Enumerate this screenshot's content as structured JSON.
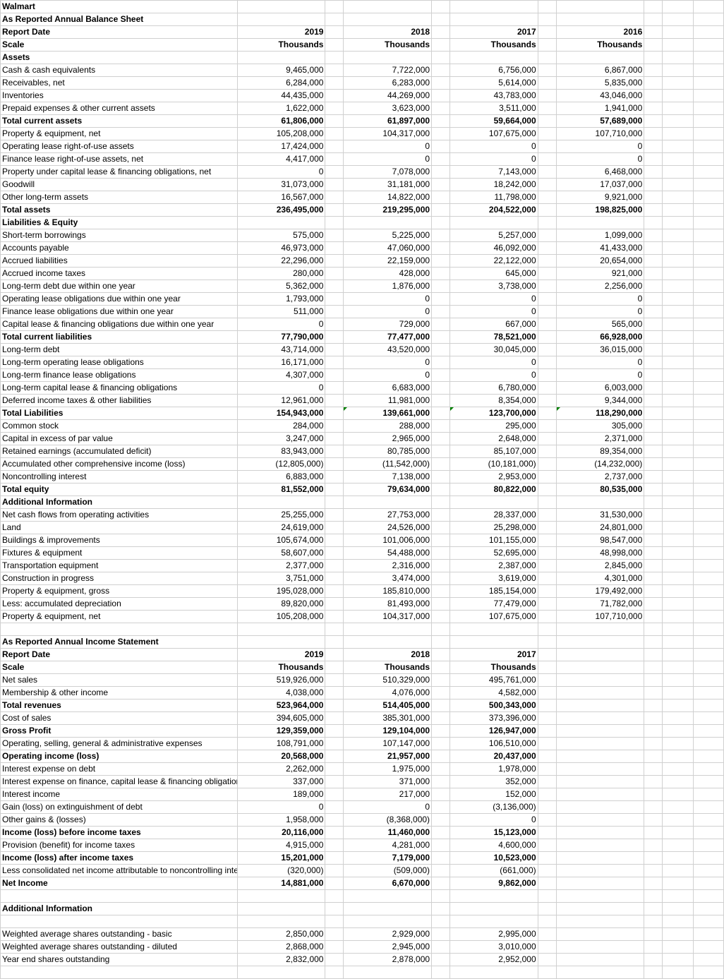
{
  "company": "Walmart",
  "sections": [
    {
      "type": "title",
      "label": "Walmart"
    },
    {
      "type": "bold",
      "label": "As Reported Annual Balance Sheet"
    },
    {
      "type": "bold",
      "label": "Report Date",
      "vals": [
        "2019",
        "2018",
        "2017",
        "2016"
      ]
    },
    {
      "type": "bold",
      "label": "Scale",
      "vals": [
        "Thousands",
        "Thousands",
        "Thousands",
        "Thousands"
      ]
    },
    {
      "type": "bold",
      "label": "Assets"
    },
    {
      "label": "Cash & cash equivalents",
      "vals": [
        "9,465,000",
        "7,722,000",
        "6,756,000",
        "6,867,000"
      ]
    },
    {
      "label": "Receivables, net",
      "vals": [
        "6,284,000",
        "6,283,000",
        "5,614,000",
        "5,835,000"
      ]
    },
    {
      "label": "Inventories",
      "vals": [
        "44,435,000",
        "44,269,000",
        "43,783,000",
        "43,046,000"
      ]
    },
    {
      "label": "Prepaid expenses & other current assets",
      "vals": [
        "1,622,000",
        "3,623,000",
        "3,511,000",
        "1,941,000"
      ]
    },
    {
      "type": "bold",
      "label": "Total current assets",
      "vals": [
        "61,806,000",
        "61,897,000",
        "59,664,000",
        "57,689,000"
      ]
    },
    {
      "label": "Property & equipment, net",
      "vals": [
        "105,208,000",
        "104,317,000",
        "107,675,000",
        "107,710,000"
      ]
    },
    {
      "label": "Operating lease right-of-use assets",
      "vals": [
        "17,424,000",
        "0",
        "0",
        "0"
      ]
    },
    {
      "label": "Finance lease right-of-use assets, net",
      "vals": [
        "4,417,000",
        "0",
        "0",
        "0"
      ]
    },
    {
      "label": "Property under capital lease & financing obligations, net",
      "vals": [
        "0",
        "7,078,000",
        "7,143,000",
        "6,468,000"
      ]
    },
    {
      "label": "Goodwill",
      "vals": [
        "31,073,000",
        "31,181,000",
        "18,242,000",
        "17,037,000"
      ]
    },
    {
      "label": "Other long-term assets",
      "vals": [
        "16,567,000",
        "14,822,000",
        "11,798,000",
        "9,921,000"
      ]
    },
    {
      "type": "bold",
      "label": "Total assets",
      "vals": [
        "236,495,000",
        "219,295,000",
        "204,522,000",
        "198,825,000"
      ]
    },
    {
      "type": "bold",
      "label": "Liabilities & Equity"
    },
    {
      "label": "Short-term borrowings",
      "vals": [
        "575,000",
        "5,225,000",
        "5,257,000",
        "1,099,000"
      ]
    },
    {
      "label": "Accounts payable",
      "vals": [
        "46,973,000",
        "47,060,000",
        "46,092,000",
        "41,433,000"
      ]
    },
    {
      "label": "Accrued liabilities",
      "vals": [
        "22,296,000",
        "22,159,000",
        "22,122,000",
        "20,654,000"
      ]
    },
    {
      "label": "Accrued income taxes",
      "vals": [
        "280,000",
        "428,000",
        "645,000",
        "921,000"
      ]
    },
    {
      "label": "Long-term debt due within one year",
      "vals": [
        "5,362,000",
        "1,876,000",
        "3,738,000",
        "2,256,000"
      ]
    },
    {
      "label": "Operating lease obligations due within one year",
      "vals": [
        "1,793,000",
        "0",
        "0",
        "0"
      ]
    },
    {
      "label": "Finance lease obligations due within one year",
      "vals": [
        "511,000",
        "0",
        "0",
        "0"
      ]
    },
    {
      "label": "Capital lease & financing obligations due within one year",
      "vals": [
        "0",
        "729,000",
        "667,000",
        "565,000"
      ]
    },
    {
      "type": "bold",
      "label": "Total current liabilities",
      "vals": [
        "77,790,000",
        "77,477,000",
        "78,521,000",
        "66,928,000"
      ]
    },
    {
      "label": "Long-term debt",
      "vals": [
        "43,714,000",
        "43,520,000",
        "30,045,000",
        "36,015,000"
      ]
    },
    {
      "label": "Long-term operating lease obligations",
      "vals": [
        "16,171,000",
        "0",
        "0",
        "0"
      ]
    },
    {
      "label": "Long-term finance lease obligations",
      "vals": [
        "4,307,000",
        "0",
        "0",
        "0"
      ]
    },
    {
      "label": "Long-term capital lease & financing obligations",
      "vals": [
        "0",
        "6,683,000",
        "6,780,000",
        "6,003,000"
      ]
    },
    {
      "label": "Deferred income taxes & other liabilities",
      "vals": [
        "12,961,000",
        "11,981,000",
        "8,354,000",
        "9,344,000"
      ]
    },
    {
      "type": "bold",
      "label": "Total Liabilities",
      "vals": [
        "154,943,000",
        "139,661,000",
        "123,700,000",
        "118,290,000"
      ],
      "tri": [
        false,
        true,
        true,
        true
      ]
    },
    {
      "label": "Common stock",
      "vals": [
        "284,000",
        "288,000",
        "295,000",
        "305,000"
      ]
    },
    {
      "label": "Capital in excess of par value",
      "vals": [
        "3,247,000",
        "2,965,000",
        "2,648,000",
        "2,371,000"
      ]
    },
    {
      "label": "Retained earnings (accumulated deficit)",
      "vals": [
        "83,943,000",
        "80,785,000",
        "85,107,000",
        "89,354,000"
      ]
    },
    {
      "label": "Accumulated other comprehensive income (loss)",
      "vals": [
        "(12,805,000)",
        "(11,542,000)",
        "(10,181,000)",
        "(14,232,000)"
      ]
    },
    {
      "label": "Noncontrolling interest",
      "vals": [
        "6,883,000",
        "7,138,000",
        "2,953,000",
        "2,737,000"
      ]
    },
    {
      "type": "bold",
      "label": "Total equity",
      "vals": [
        "81,552,000",
        "79,634,000",
        "80,822,000",
        "80,535,000"
      ]
    },
    {
      "type": "bold",
      "label": "Additional Information"
    },
    {
      "label": "Net cash flows from operating activities",
      "vals": [
        "25,255,000",
        "27,753,000",
        "28,337,000",
        "31,530,000"
      ]
    },
    {
      "label": "Land",
      "vals": [
        "24,619,000",
        "24,526,000",
        "25,298,000",
        "24,801,000"
      ]
    },
    {
      "label": "Buildings & improvements",
      "vals": [
        "105,674,000",
        "101,006,000",
        "101,155,000",
        "98,547,000"
      ]
    },
    {
      "label": "Fixtures & equipment",
      "vals": [
        "58,607,000",
        "54,488,000",
        "52,695,000",
        "48,998,000"
      ]
    },
    {
      "label": "Transportation equipment",
      "vals": [
        "2,377,000",
        "2,316,000",
        "2,387,000",
        "2,845,000"
      ]
    },
    {
      "label": "Construction in progress",
      "vals": [
        "3,751,000",
        "3,474,000",
        "3,619,000",
        "4,301,000"
      ]
    },
    {
      "label": "Property & equipment, gross",
      "vals": [
        "195,028,000",
        "185,810,000",
        "185,154,000",
        "179,492,000"
      ]
    },
    {
      "label": "Less: accumulated depreciation",
      "vals": [
        "89,820,000",
        "81,493,000",
        "77,479,000",
        "71,782,000"
      ]
    },
    {
      "label": "Property & equipment, net",
      "vals": [
        "105,208,000",
        "104,317,000",
        "107,675,000",
        "107,710,000"
      ]
    },
    {
      "type": "blank"
    },
    {
      "type": "bold",
      "label": "As Reported Annual Income Statement"
    },
    {
      "type": "bold",
      "label": "Report Date",
      "vals": [
        "2019",
        "2018",
        "2017",
        ""
      ]
    },
    {
      "type": "bold",
      "label": "Scale",
      "vals": [
        "Thousands",
        "Thousands",
        "Thousands",
        ""
      ]
    },
    {
      "label": "Net sales",
      "vals": [
        "519,926,000",
        "510,329,000",
        "495,761,000",
        ""
      ]
    },
    {
      "label": "Membership & other income",
      "vals": [
        "4,038,000",
        "4,076,000",
        "4,582,000",
        ""
      ]
    },
    {
      "type": "bold",
      "label": "Total revenues",
      "vals": [
        "523,964,000",
        "514,405,000",
        "500,343,000",
        ""
      ]
    },
    {
      "label": "Cost of sales",
      "vals": [
        "394,605,000",
        "385,301,000",
        "373,396,000",
        ""
      ]
    },
    {
      "type": "bold",
      "label": "Gross Profit",
      "vals": [
        "129,359,000",
        "129,104,000",
        "126,947,000",
        ""
      ]
    },
    {
      "label": "Operating, selling, general & administrative expenses",
      "vals": [
        "108,791,000",
        "107,147,000",
        "106,510,000",
        ""
      ]
    },
    {
      "type": "bold",
      "label": "Operating income (loss)",
      "vals": [
        "20,568,000",
        "21,957,000",
        "20,437,000",
        ""
      ]
    },
    {
      "label": "Interest expense on debt",
      "vals": [
        "2,262,000",
        "1,975,000",
        "1,978,000",
        ""
      ]
    },
    {
      "label": "Interest expense on finance, capital lease & financing obligations",
      "vals": [
        "337,000",
        "371,000",
        "352,000",
        ""
      ]
    },
    {
      "label": "Interest income",
      "vals": [
        "189,000",
        "217,000",
        "152,000",
        ""
      ]
    },
    {
      "label": "Gain (loss) on extinguishment of debt",
      "vals": [
        "0",
        "0",
        "(3,136,000)",
        ""
      ]
    },
    {
      "label": "Other gains & (losses)",
      "vals": [
        "1,958,000",
        "(8,368,000)",
        "0",
        ""
      ]
    },
    {
      "type": "bold",
      "label": "Income (loss) before income taxes",
      "vals": [
        "20,116,000",
        "11,460,000",
        "15,123,000",
        ""
      ]
    },
    {
      "label": "Provision (benefit) for income taxes",
      "vals": [
        "4,915,000",
        "4,281,000",
        "4,600,000",
        ""
      ]
    },
    {
      "type": "bold",
      "label": "Income (loss) after income taxes",
      "vals": [
        "15,201,000",
        "7,179,000",
        "10,523,000",
        ""
      ]
    },
    {
      "label": "Less consolidated net income attributable to noncontrolling interest",
      "vals": [
        "(320,000)",
        "(509,000)",
        "(661,000)",
        ""
      ]
    },
    {
      "type": "bold",
      "label": "Net Income",
      "vals": [
        "14,881,000",
        "6,670,000",
        "9,862,000",
        ""
      ]
    },
    {
      "type": "blank"
    },
    {
      "type": "bold",
      "label": "Additional Information"
    },
    {
      "type": "blank"
    },
    {
      "label": "Weighted average shares outstanding - basic",
      "vals": [
        "2,850,000",
        "2,929,000",
        "2,995,000",
        ""
      ]
    },
    {
      "label": "Weighted average shares outstanding - diluted",
      "vals": [
        "2,868,000",
        "2,945,000",
        "3,010,000",
        ""
      ]
    },
    {
      "label": "Year end shares outstanding",
      "vals": [
        "2,832,000",
        "2,878,000",
        "2,952,000",
        ""
      ]
    },
    {
      "type": "blank"
    }
  ]
}
